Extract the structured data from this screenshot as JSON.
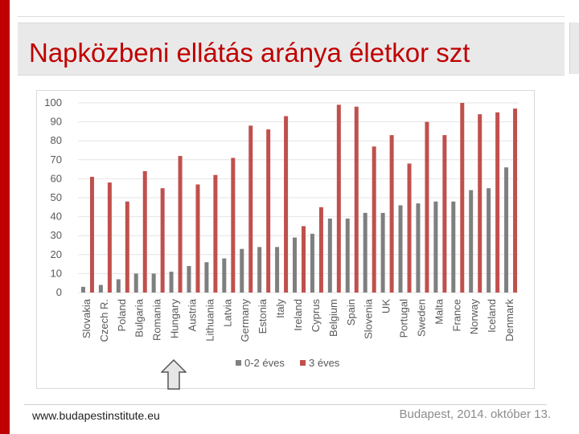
{
  "slide": {
    "title": "Napközbeni ellátás aránya életkor szt",
    "footer_left": "www.budapestinstitute.eu",
    "footer_right": "Budapest, 2014. október 13."
  },
  "colors": {
    "accent": "#c00000",
    "series_0_2": "#7f7f7f",
    "series_3": "#c0504d"
  },
  "icons": {
    "arrow": "up-arrow-icon"
  },
  "chart_data": {
    "type": "bar",
    "title": "",
    "xlabel": "",
    "ylabel": "",
    "ylim": [
      0,
      100
    ],
    "yticks": [
      0,
      10,
      20,
      30,
      40,
      50,
      60,
      70,
      80,
      90,
      100
    ],
    "grid": true,
    "legend": "bottom",
    "categories": [
      "Slovakia",
      "Czech R.",
      "Poland",
      "Bulgaria",
      "Romania",
      "Hungary",
      "Austria",
      "Lithuania",
      "Latvia",
      "Germany",
      "Estonia",
      "Italy",
      "Ireland",
      "Cyprus",
      "Belgium",
      "Spain",
      "Slovenia",
      "UK",
      "Portugal",
      "Sweden",
      "Malta",
      "France",
      "Norway",
      "Iceland",
      "Denmark"
    ],
    "series": [
      {
        "name": "0-2 éves",
        "values": [
          3,
          4,
          7,
          10,
          10,
          11,
          14,
          16,
          18,
          23,
          24,
          24,
          29,
          31,
          39,
          39,
          42,
          42,
          46,
          47,
          48,
          48,
          54,
          55,
          66
        ]
      },
      {
        "name": "3 éves",
        "values": [
          61,
          58,
          48,
          64,
          55,
          72,
          57,
          62,
          71,
          88,
          86,
          93,
          35,
          45,
          99,
          98,
          77,
          83,
          68,
          90,
          83,
          100,
          94,
          95,
          97
        ]
      }
    ]
  }
}
